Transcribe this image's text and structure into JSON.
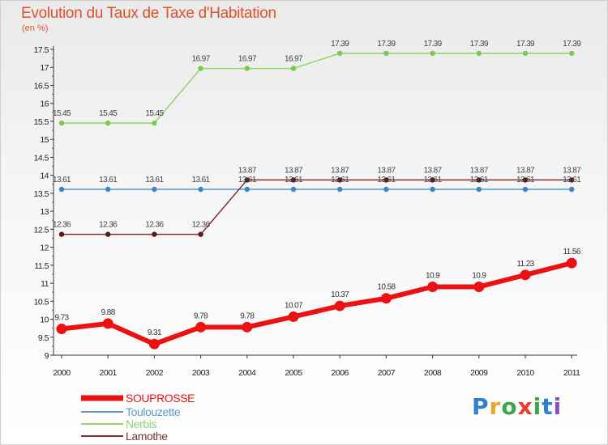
{
  "chart_data": {
    "type": "line",
    "title": "Evolution du Taux de Taxe d'Habitation",
    "subtitle": "(en %)",
    "xlabel": "",
    "ylabel": "",
    "categories": [
      "2000",
      "2001",
      "2002",
      "2003",
      "2004",
      "2005",
      "2006",
      "2007",
      "2008",
      "2009",
      "2010",
      "2011"
    ],
    "ylim": [
      9,
      17.5
    ],
    "yticks": [
      "9",
      "9.5",
      "10",
      "10.5",
      "11",
      "11.5",
      "12",
      "12.5",
      "13",
      "13.5",
      "14",
      "14.5",
      "15",
      "15.5",
      "16",
      "16.5",
      "17",
      "17.5"
    ],
    "grid": false,
    "legend_position": "bottom-left",
    "series": [
      {
        "name": "SOUPROSSE",
        "color": "#ee1111",
        "values": [
          9.73,
          9.88,
          9.31,
          9.78,
          9.78,
          10.07,
          10.37,
          10.58,
          10.9,
          10.9,
          11.23,
          11.56
        ],
        "labels": [
          "9.73",
          "9.88",
          "9.31",
          "9.78",
          "9.78",
          "10.07",
          "10.37",
          "10.58",
          "10.9",
          "10.9",
          "11.23",
          "11.56"
        ]
      },
      {
        "name": "Toulouzette",
        "color": "#5e98c9",
        "values": [
          13.61,
          13.61,
          13.61,
          13.61,
          13.61,
          13.61,
          13.61,
          13.61,
          13.61,
          13.61,
          13.61,
          13.61
        ],
        "labels": [
          "13.61",
          "13.61",
          "13.61",
          "13.61",
          "13.61",
          "13.61",
          "13.61",
          "13.61",
          "13.61",
          "13.61",
          "13.61",
          "13.61"
        ]
      },
      {
        "name": "Nerbis",
        "color": "#8ed56a",
        "values": [
          15.45,
          15.45,
          15.45,
          16.97,
          16.97,
          16.97,
          17.39,
          17.39,
          17.39,
          17.39,
          17.39,
          17.39
        ],
        "labels": [
          "15.45",
          "15.45",
          "15.45",
          "16.97",
          "16.97",
          "16.97",
          "17.39",
          "17.39",
          "17.39",
          "17.39",
          "17.39",
          "17.39"
        ]
      },
      {
        "name": "Lamothe",
        "color": "#7a3333",
        "values": [
          12.36,
          12.36,
          12.36,
          12.36,
          13.87,
          13.87,
          13.87,
          13.87,
          13.87,
          13.87,
          13.87,
          13.87
        ],
        "labels": [
          "12.36",
          "12.36",
          "12.36",
          "12.36",
          "13.87",
          "13.87",
          "13.87",
          "13.87",
          "13.87",
          "13.87",
          "13.87",
          "13.87"
        ]
      }
    ]
  },
  "logo": {
    "text": "Proxiti",
    "letters": [
      "P",
      "r",
      "o",
      "x",
      "i",
      "t",
      "i"
    ],
    "colors": [
      "#2f7fd1",
      "#f0a428",
      "#3aa84a",
      "#e6402c",
      "#3aa84a",
      "#2f7fd1",
      "#8a4fb8"
    ]
  }
}
